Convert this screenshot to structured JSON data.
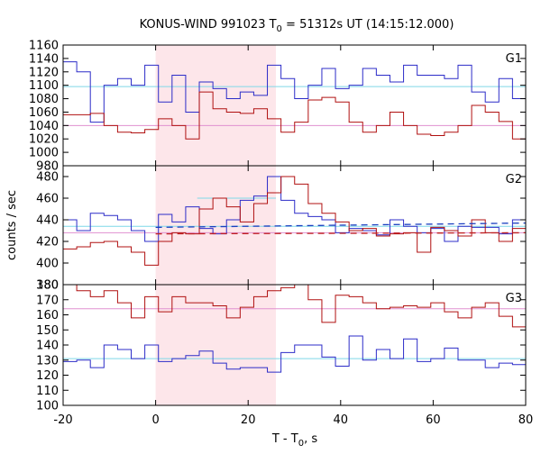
{
  "figure": {
    "title": "KONUS-WIND 991023 T0 = 51312s UT (14:15:12.000)",
    "title_parts": {
      "prefix": "KONUS-WIND 991023 T",
      "subscript": "0",
      "suffix": " = 51312s UT (14:15:12.000)"
    },
    "ylabel": "counts / sec",
    "xlabel_parts": {
      "prefix": "T - T",
      "subscript": "0",
      "suffix": ", s"
    },
    "xlabel": "T - T0, s"
  },
  "chart_data": {
    "type": "line",
    "style": "step",
    "xlim": [
      -20,
      80
    ],
    "xticks": [
      -20,
      0,
      20,
      40,
      60,
      80
    ],
    "shaded_interval": [
      0,
      26
    ],
    "colors": {
      "blue": "#2c2cc8",
      "red": "#b01010",
      "cyan": "#7fd8e8",
      "pink": "#e090d0",
      "shade": "#fde6ea",
      "dashed_blue": "#1a3fc0",
      "dashed_red": "#c02020"
    },
    "bin_width": 2.944,
    "x_start": -20,
    "panels": [
      {
        "label": "G1",
        "ylim": [
          980,
          1160
        ],
        "yticks": [
          980,
          1000,
          1020,
          1040,
          1060,
          1080,
          1100,
          1120,
          1140,
          1160
        ],
        "series": [
          {
            "color": "blue",
            "values": [
              1135,
              1120,
              1045,
              1100,
              1110,
              1100,
              1130,
              1075,
              1115,
              1060,
              1105,
              1095,
              1080,
              1090,
              1085,
              1130,
              1110,
              1080,
              1100,
              1125,
              1095,
              1100,
              1125,
              1115,
              1105,
              1130,
              1115,
              1115,
              1110,
              1130,
              1090,
              1075,
              1110,
              1080,
              1085,
              1075,
              1100,
              1105,
              1095,
              1100,
              1105,
              1110,
              1125,
              1095,
              1085,
              1100,
              1140,
              1105,
              1125,
              1095
            ]
          },
          {
            "color": "red",
            "values": [
              1056,
              1056,
              1058,
              1040,
              1030,
              1029,
              1034,
              1050,
              1040,
              1020,
              1090,
              1065,
              1060,
              1058,
              1065,
              1050,
              1030,
              1045,
              1078,
              1082,
              1075,
              1045,
              1030,
              1040,
              1060,
              1040,
              1027,
              1025,
              1030,
              1040,
              1070,
              1060,
              1046,
              1020,
              1040,
              1045,
              1005,
              1060,
              1015,
              1042,
              1055,
              1040,
              1035,
              1040,
              1002,
              1055,
              1040,
              1025,
              1050,
              1050
            ]
          }
        ],
        "levels": [
          {
            "color": "cyan",
            "value": 1098
          },
          {
            "color": "pink",
            "value": 1040
          }
        ]
      },
      {
        "label": "G2",
        "ylim": [
          380,
          490
        ],
        "yticks": [
          380,
          400,
          420,
          440,
          460,
          480
        ],
        "series": [
          {
            "color": "blue",
            "values": [
              440,
              430,
              446,
              444,
              440,
              430,
              420,
              445,
              438,
              452,
              432,
              427,
              440,
              458,
              462,
              480,
              458,
              446,
              443,
              440,
              428,
              432,
              430,
              426,
              440,
              434,
              428,
              432,
              420,
              434,
              433,
              433,
              427,
              440,
              430,
              443,
              428,
              426,
              434,
              440,
              430,
              443,
              445,
              434,
              440,
              440,
              430,
              436,
              438,
              433
            ]
          },
          {
            "color": "red",
            "values": [
              413,
              415,
              419,
              420,
              415,
              410,
              398,
              420,
              428,
              427,
              450,
              460,
              452,
              438,
              455,
              465,
              480,
              473,
              455,
              446,
              438,
              430,
              432,
              425,
              427,
              428,
              410,
              433,
              430,
              425,
              440,
              428,
              420,
              432,
              425,
              430,
              436,
              425,
              432,
              427,
              433,
              420,
              440,
              425,
              425,
              418,
              444,
              434,
              427,
              420
            ]
          }
        ],
        "levels": [
          {
            "color": "cyan",
            "value": 434
          },
          {
            "color": "pink",
            "value": 428
          }
        ],
        "fit_steps": [
          {
            "color": "cyan",
            "x": [
              9,
              26
            ],
            "value": 460
          }
        ],
        "dashed": [
          {
            "color": "dashed_blue",
            "x": [
              0,
              80
            ],
            "y0": 433,
            "y1": 437
          },
          {
            "color": "dashed_red",
            "x": [
              0,
              80
            ],
            "y0": 427,
            "y1": 428
          }
        ]
      },
      {
        "label": "G3",
        "ylim": [
          100,
          180
        ],
        "yticks": [
          100,
          110,
          120,
          130,
          140,
          150,
          160,
          170,
          180
        ],
        "series": [
          {
            "color": "blue",
            "values": [
              129,
              130,
              125,
              140,
              137,
              131,
              140,
              129,
              131,
              133,
              136,
              128,
              124,
              125,
              125,
              122,
              135,
              140,
              140,
              132,
              126,
              146,
              130,
              137,
              131,
              144,
              129,
              131,
              138,
              130,
              130,
              125,
              128,
              127,
              140,
              120,
              129,
              127,
              125,
              133,
              128,
              135,
              126,
              137,
              146,
              128,
              126,
              132,
              130,
              115
            ]
          },
          {
            "color": "red",
            "values": [
              180,
              176,
              172,
              176,
              168,
              158,
              172,
              162,
              172,
              168,
              168,
              166,
              158,
              165,
              172,
              176,
              178,
              180,
              170,
              155,
              173,
              172,
              168,
              164,
              165,
              166,
              165,
              168,
              162,
              158,
              165,
              168,
              159,
              152,
              168,
              168,
              160,
              165,
              158,
              152,
              158,
              166,
              172,
              168,
              155,
              162,
              164,
              168,
              178,
              178
            ]
          }
        ],
        "levels": [
          {
            "color": "cyan",
            "value": 131
          },
          {
            "color": "pink",
            "value": 164
          }
        ]
      }
    ]
  }
}
